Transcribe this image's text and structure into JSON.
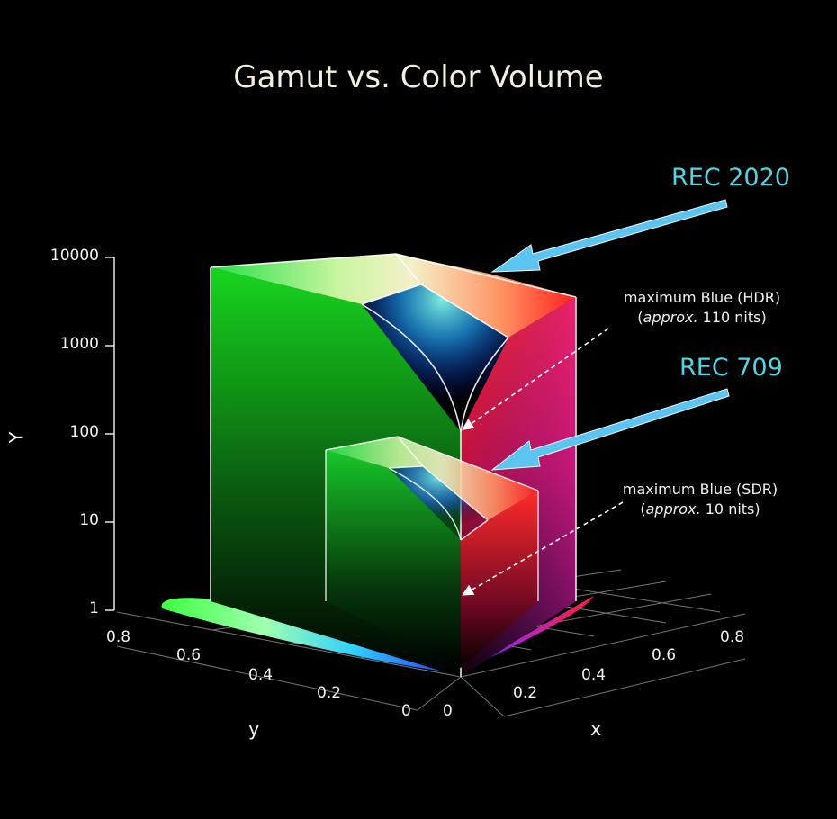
{
  "title": "Gamut vs. Color Volume",
  "callouts": {
    "rec2020": "REC 2020",
    "rec709": "REC 709"
  },
  "notes": {
    "hdr": {
      "line1": "maximum Blue (HDR)",
      "approx": "approx.",
      "value": "110 nits",
      "open": "(",
      "close": ")"
    },
    "sdr": {
      "line1": "maximum Blue (SDR)",
      "approx": "approx.",
      "value": "10 nits",
      "open": "(",
      "close": ")"
    }
  },
  "axes": {
    "Y": {
      "title": "Y",
      "ticks": [
        "10000",
        "1000",
        "100",
        "10",
        "1"
      ]
    },
    "y": {
      "title": "y",
      "ticks": [
        "0.8",
        "0.6",
        "0.4",
        "0.2",
        "0"
      ]
    },
    "x": {
      "title": "x",
      "ticks": [
        "0",
        "0.2",
        "0.4",
        "0.6",
        "0.8"
      ]
    }
  },
  "colors": {
    "background": "#000000",
    "callout": "#52d3e6",
    "arrow": "#5cc4f0",
    "title": "#f4eedf"
  }
}
